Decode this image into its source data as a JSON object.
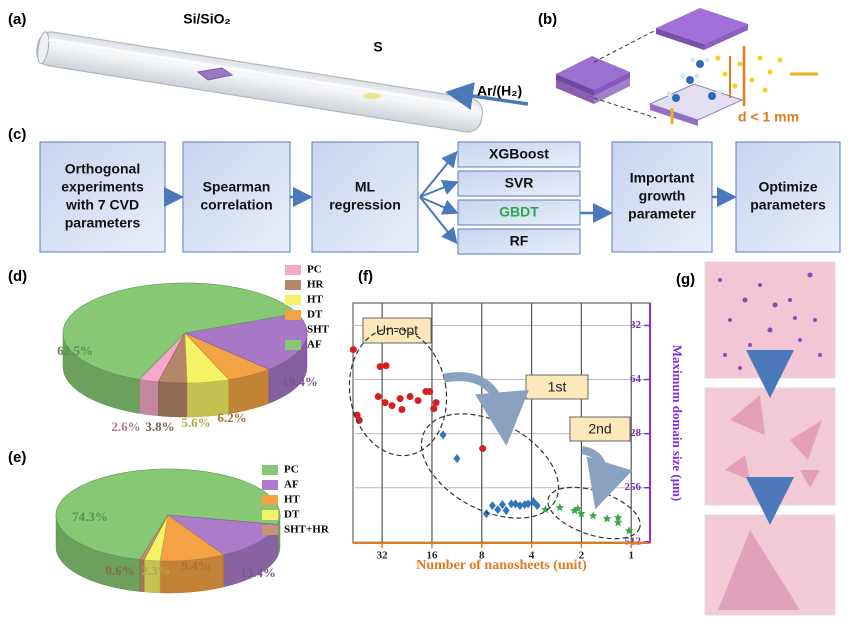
{
  "panel_labels": [
    "(a)",
    "(b)",
    "(c)",
    "(d)",
    "(e)",
    "(f)",
    "(g)"
  ],
  "tube": {
    "substrate": "Si/SiO₂",
    "source": "S",
    "gas": "Ar/(H₂)"
  },
  "confined": {
    "gap": "d < 1 mm"
  },
  "workflow": {
    "steps": [
      [
        "Orthogonal",
        "experiments",
        "with 7 CVD",
        "parameters"
      ],
      [
        "Spearman",
        "correlation"
      ],
      [
        "ML",
        "regression"
      ],
      [
        "Important",
        "growth",
        "parameter"
      ],
      [
        "Optimize",
        "parameters"
      ]
    ],
    "models": [
      "XGBoost",
      "SVR",
      "GBDT",
      "RF"
    ]
  },
  "chart_data": [
    {
      "type": "pie",
      "categories": [
        "PC",
        "HR",
        "HT",
        "DT",
        "SHT",
        "AF"
      ],
      "values": [
        2.6,
        3.8,
        5.6,
        6.2,
        19.4,
        62.5
      ],
      "value_labels": [
        "2.6%",
        "3.8%",
        "5.6%",
        "6.2%",
        "19.4%",
        "62.5%"
      ],
      "colors": [
        "#f5a8c8",
        "#b4866a",
        "#f6f266",
        "#f2a444",
        "#a878c6",
        "#86c874"
      ],
      "style": "3d"
    },
    {
      "type": "pie",
      "categories": [
        "PC",
        "AF",
        "HT",
        "DT",
        "SHT+HR"
      ],
      "values": [
        74.3,
        13.4,
        9.4,
        2.3,
        0.6
      ],
      "value_labels": [
        "74.3%",
        "13.4%",
        "9.4%",
        "2.3%",
        "0.6%"
      ],
      "colors": [
        "#86c874",
        "#ac7cca",
        "#f4a244",
        "#f6f266",
        "#c49472"
      ],
      "style": "3d"
    },
    {
      "type": "scatter",
      "x_label": "Number of nanosheets (unit)",
      "y_label": "Maximum domain size (μm)",
      "xlog": true,
      "ylog": true,
      "xlim": [
        48,
        0.77
      ],
      "ylim": [
        520,
        24
      ],
      "xticks": [
        32,
        16,
        8,
        4,
        2,
        1
      ],
      "yticks": [
        32,
        64,
        128,
        256,
        512
      ],
      "yaxis_side": "right",
      "grid": true,
      "series": [
        {
          "name": "Un-opt",
          "color": "#d42020",
          "marker": "circle",
          "x": [
            47.8,
            45.3,
            44.0,
            32.9,
            30.3,
            33.8,
            30.7,
            27.9,
            24.9,
            24.3,
            21.7,
            19.4,
            17.4,
            16.5,
            15.6,
            15.1,
            7.9
          ],
          "values": [
            43.6,
            101,
            108,
            54.2,
            53.6,
            79.6,
            86,
            89.4,
            81.7,
            94,
            79.6,
            83.8,
            74.6,
            74.6,
            92.9,
            86,
            155
          ]
        },
        {
          "name": "1st",
          "color": "#2e78b8",
          "marker": "diamond",
          "x": [
            13.7,
            11.3,
            7.5,
            6.9,
            6.4,
            6.0,
            5.7,
            5.3,
            5.0,
            4.7,
            4.4,
            4.2,
            3.9,
            3.7
          ],
          "values": [
            130,
            176,
            357,
            322,
            339,
            318,
            343,
            315,
            315,
            322,
            318,
            315,
            306,
            322
          ]
        },
        {
          "name": "2nd",
          "color": "#3aa84a",
          "marker": "star",
          "x": [
            3.3,
            2.7,
            2.2,
            2.1,
            2.0,
            1.7,
            1.4,
            1.2,
            1.2,
            1.03
          ],
          "values": [
            339,
            330,
            343,
            335,
            357,
            367,
            381,
            376,
            401,
            445
          ]
        }
      ]
    }
  ]
}
